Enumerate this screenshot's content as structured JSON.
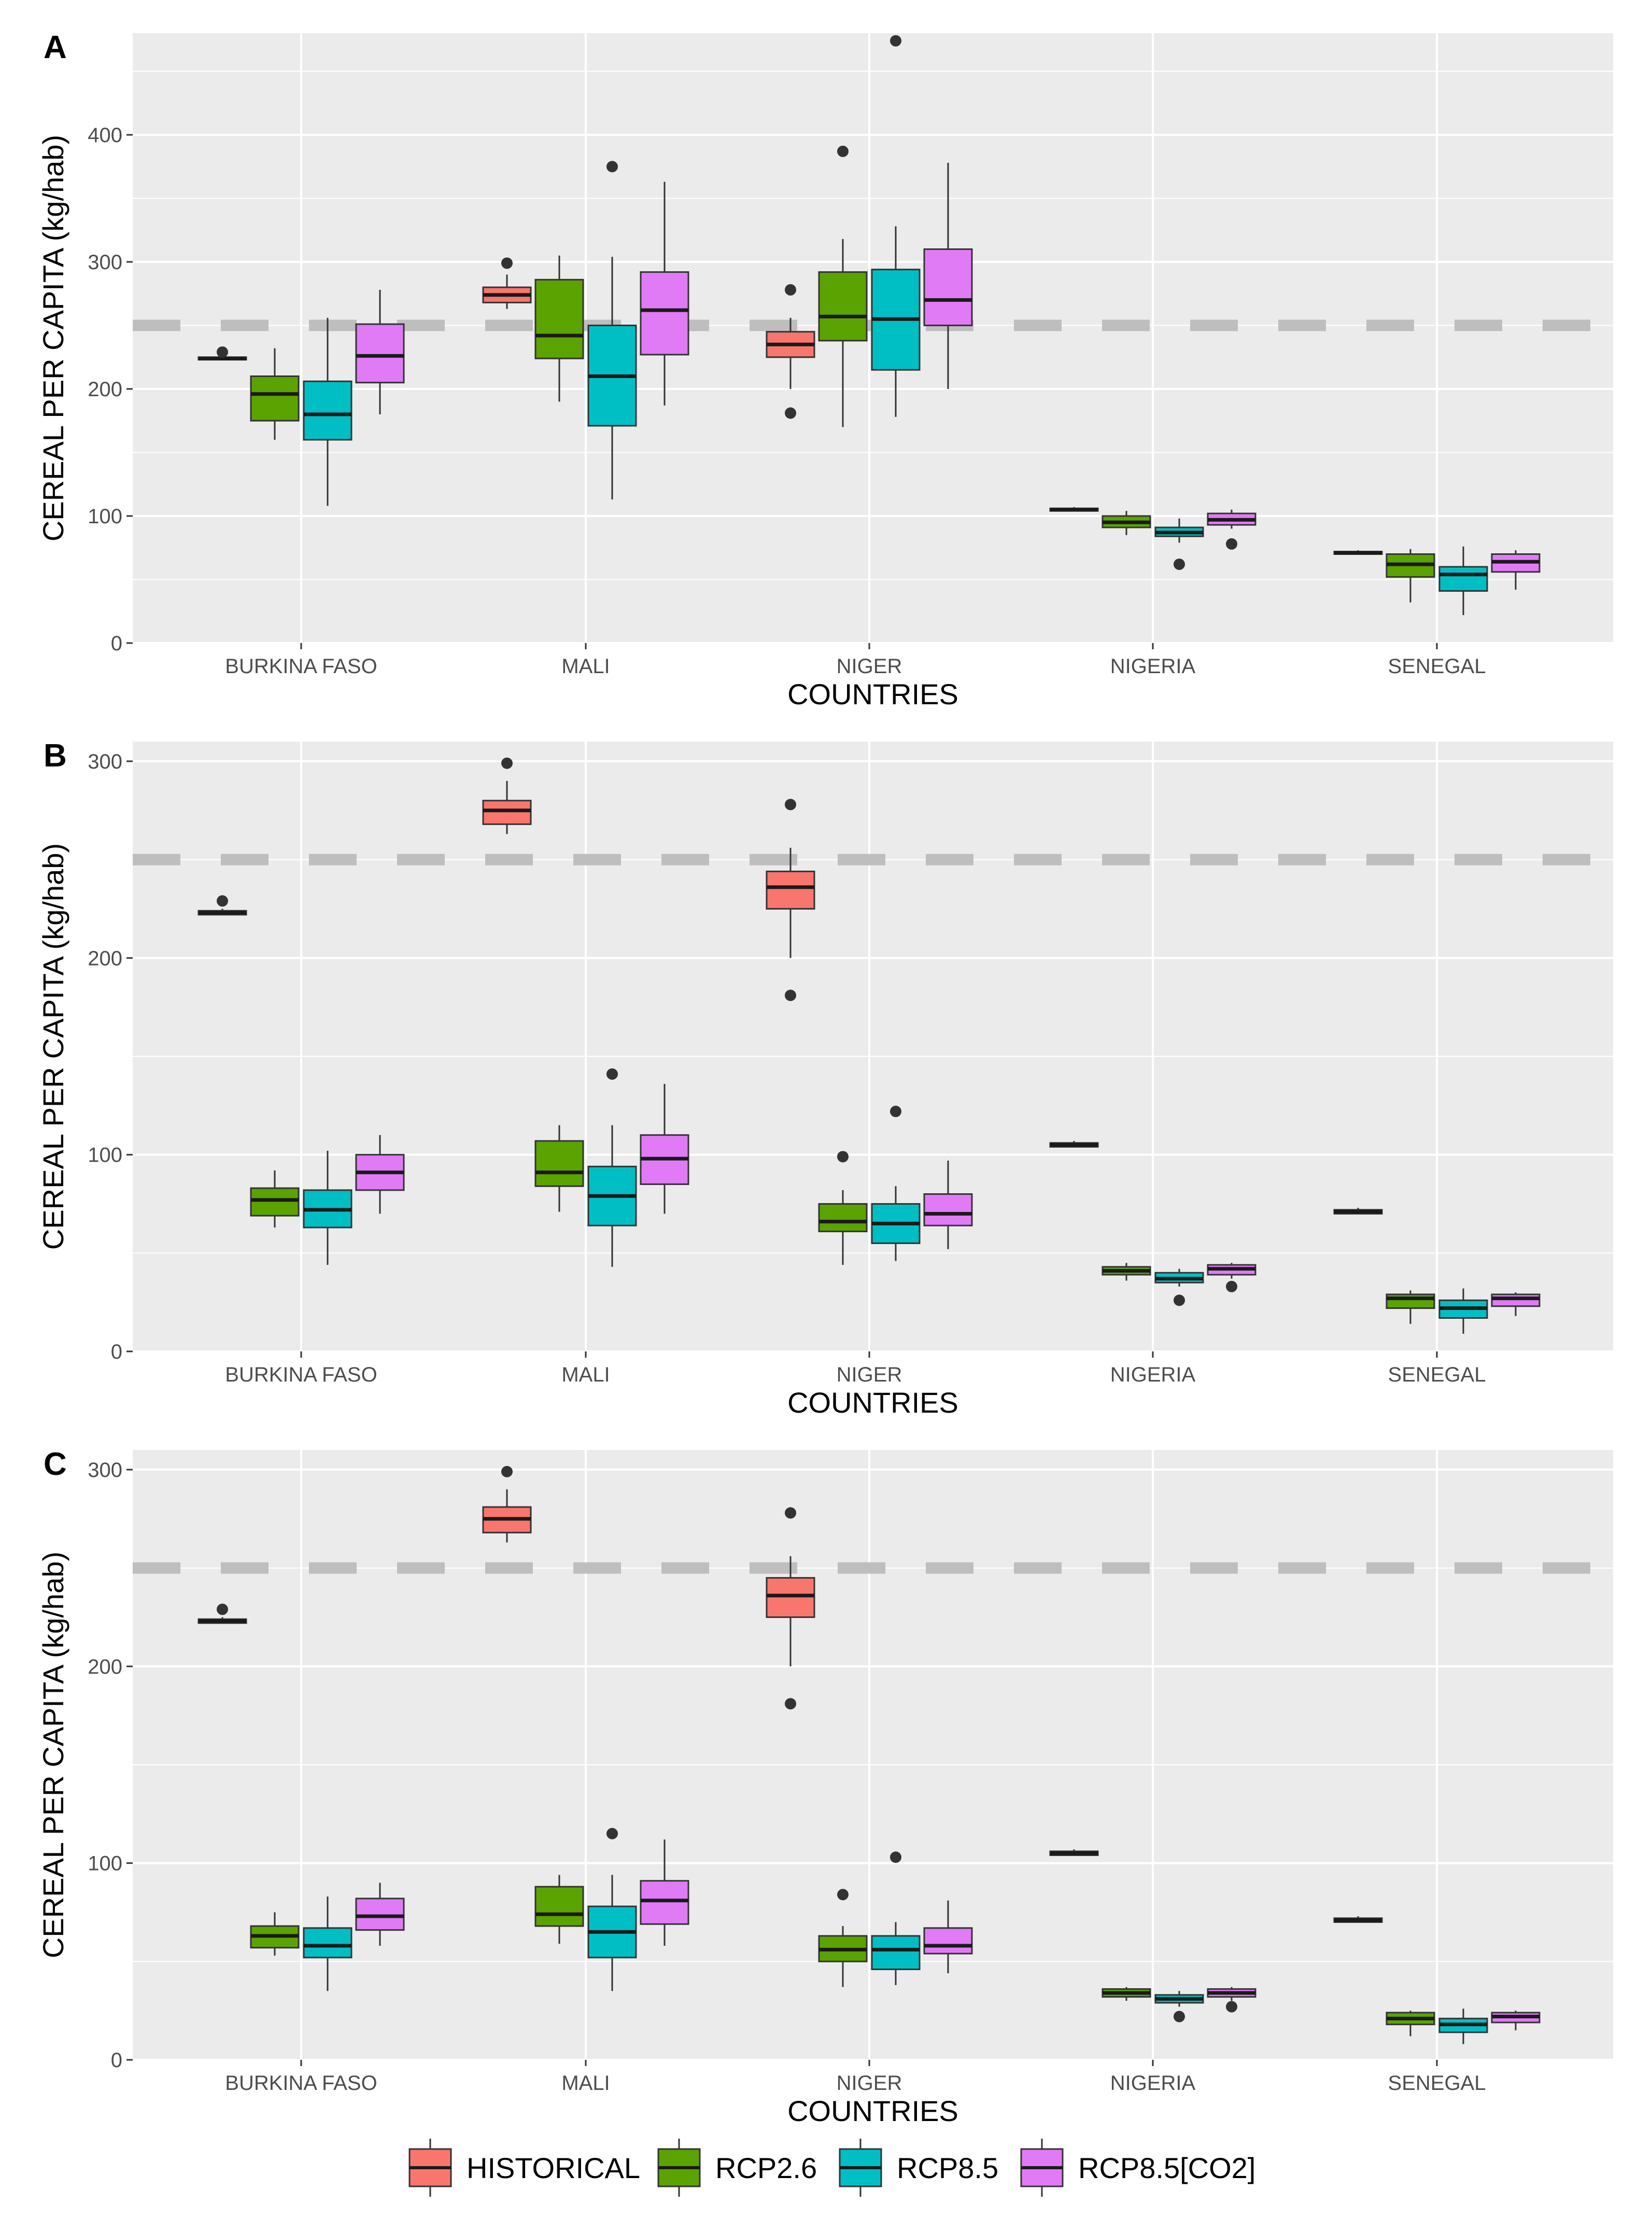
{
  "chart_data": {
    "type": "boxplot",
    "categories": [
      "BURKINA FASO",
      "MALI",
      "NIGER",
      "NIGERIA",
      "SENEGAL"
    ],
    "xlabel": "COUNTRIES",
    "ylabel": "CEREAL PER CAPITA (kg/hab)",
    "series_names": [
      "HISTORICAL",
      "RCP2.6",
      "RCP8.5",
      "RCP8.5[CO2]"
    ],
    "colors": {
      "HISTORICAL": "#F8766D",
      "RCP2.6": "#5BA300",
      "RCP8.5": "#00BFC4",
      "RCP8.5[CO2]": "#E07BF5",
      "panel_bg": "#EBEBEB",
      "grid": "#FFFFFF",
      "reference_line": "#BEBEBE"
    },
    "reference_line": 250,
    "panels": [
      {
        "label": "A",
        "ylim": [
          0,
          480
        ],
        "yticks": [
          0,
          100,
          200,
          300,
          400
        ],
        "boxes": [
          {
            "category": "BURKINA FASO",
            "series": "HISTORICAL",
            "min": 223,
            "q1": 223,
            "median": 224,
            "q3": 225,
            "max": 226,
            "outliers": [
              229
            ]
          },
          {
            "category": "BURKINA FASO",
            "series": "RCP2.6",
            "min": 160,
            "q1": 175,
            "median": 196,
            "q3": 210,
            "max": 232,
            "outliers": []
          },
          {
            "category": "BURKINA FASO",
            "series": "RCP8.5",
            "min": 108,
            "q1": 160,
            "median": 180,
            "q3": 206,
            "max": 256,
            "outliers": []
          },
          {
            "category": "BURKINA FASO",
            "series": "RCP8.5[CO2]",
            "min": 180,
            "q1": 205,
            "median": 226,
            "q3": 251,
            "max": 278,
            "outliers": []
          },
          {
            "category": "MALI",
            "series": "HISTORICAL",
            "min": 263,
            "q1": 268,
            "median": 274,
            "q3": 280,
            "max": 290,
            "outliers": [
              299
            ]
          },
          {
            "category": "MALI",
            "series": "RCP2.6",
            "min": 190,
            "q1": 224,
            "median": 242,
            "q3": 286,
            "max": 305,
            "outliers": []
          },
          {
            "category": "MALI",
            "series": "RCP8.5",
            "min": 113,
            "q1": 171,
            "median": 210,
            "q3": 250,
            "max": 304,
            "outliers": [
              375
            ]
          },
          {
            "category": "MALI",
            "series": "RCP8.5[CO2]",
            "min": 187,
            "q1": 227,
            "median": 262,
            "q3": 292,
            "max": 363,
            "outliers": []
          },
          {
            "category": "NIGER",
            "series": "HISTORICAL",
            "min": 200,
            "q1": 225,
            "median": 235,
            "q3": 245,
            "max": 256,
            "outliers": [
              278,
              181
            ]
          },
          {
            "category": "NIGER",
            "series": "RCP2.6",
            "min": 170,
            "q1": 238,
            "median": 257,
            "q3": 292,
            "max": 318,
            "outliers": [
              387
            ]
          },
          {
            "category": "NIGER",
            "series": "RCP8.5",
            "min": 178,
            "q1": 215,
            "median": 255,
            "q3": 294,
            "max": 328,
            "outliers": [
              474
            ]
          },
          {
            "category": "NIGER",
            "series": "RCP8.5[CO2]",
            "min": 200,
            "q1": 250,
            "median": 270,
            "q3": 310,
            "max": 378,
            "outliers": []
          },
          {
            "category": "NIGERIA",
            "series": "HISTORICAL",
            "min": 104,
            "q1": 104,
            "median": 105,
            "q3": 106,
            "max": 107,
            "outliers": []
          },
          {
            "category": "NIGERIA",
            "series": "RCP2.6",
            "min": 85,
            "q1": 91,
            "median": 95,
            "q3": 100,
            "max": 104,
            "outliers": []
          },
          {
            "category": "NIGERIA",
            "series": "RCP8.5",
            "min": 79,
            "q1": 84,
            "median": 87,
            "q3": 91,
            "max": 98,
            "outliers": [
              62
            ]
          },
          {
            "category": "NIGERIA",
            "series": "RCP8.5[CO2]",
            "min": 90,
            "q1": 93,
            "median": 97,
            "q3": 102,
            "max": 105,
            "outliers": [
              78
            ]
          },
          {
            "category": "SENEGAL",
            "series": "HISTORICAL",
            "min": 70,
            "q1": 70,
            "median": 71,
            "q3": 72,
            "max": 73,
            "outliers": []
          },
          {
            "category": "SENEGAL",
            "series": "RCP2.6",
            "min": 32,
            "q1": 52,
            "median": 62,
            "q3": 70,
            "max": 74,
            "outliers": []
          },
          {
            "category": "SENEGAL",
            "series": "RCP8.5",
            "min": 22,
            "q1": 41,
            "median": 54,
            "q3": 60,
            "max": 76,
            "outliers": []
          },
          {
            "category": "SENEGAL",
            "series": "RCP8.5[CO2]",
            "min": 42,
            "q1": 56,
            "median": 64,
            "q3": 70,
            "max": 73,
            "outliers": []
          }
        ]
      },
      {
        "label": "B",
        "ylim": [
          0,
          310
        ],
        "yticks": [
          0,
          100,
          200,
          300
        ],
        "boxes": [
          {
            "category": "BURKINA FASO",
            "series": "HISTORICAL",
            "min": 222,
            "q1": 222,
            "median": 223,
            "q3": 224,
            "max": 225,
            "outliers": [
              229
            ]
          },
          {
            "category": "BURKINA FASO",
            "series": "RCP2.6",
            "min": 63,
            "q1": 69,
            "median": 77,
            "q3": 83,
            "max": 92,
            "outliers": []
          },
          {
            "category": "BURKINA FASO",
            "series": "RCP8.5",
            "min": 44,
            "q1": 63,
            "median": 72,
            "q3": 82,
            "max": 102,
            "outliers": []
          },
          {
            "category": "BURKINA FASO",
            "series": "RCP8.5[CO2]",
            "min": 70,
            "q1": 82,
            "median": 91,
            "q3": 100,
            "max": 110,
            "outliers": []
          },
          {
            "category": "MALI",
            "series": "HISTORICAL",
            "min": 263,
            "q1": 268,
            "median": 275,
            "q3": 280,
            "max": 290,
            "outliers": [
              299
            ]
          },
          {
            "category": "MALI",
            "series": "RCP2.6",
            "min": 71,
            "q1": 84,
            "median": 91,
            "q3": 107,
            "max": 115,
            "outliers": []
          },
          {
            "category": "MALI",
            "series": "RCP8.5",
            "min": 43,
            "q1": 64,
            "median": 79,
            "q3": 94,
            "max": 115,
            "outliers": [
              141
            ]
          },
          {
            "category": "MALI",
            "series": "RCP8.5[CO2]",
            "min": 70,
            "q1": 85,
            "median": 98,
            "q3": 110,
            "max": 136,
            "outliers": []
          },
          {
            "category": "NIGER",
            "series": "HISTORICAL",
            "min": 200,
            "q1": 225,
            "median": 236,
            "q3": 244,
            "max": 256,
            "outliers": [
              278,
              181
            ]
          },
          {
            "category": "NIGER",
            "series": "RCP2.6",
            "min": 44,
            "q1": 61,
            "median": 66,
            "q3": 75,
            "max": 82,
            "outliers": [
              99
            ]
          },
          {
            "category": "NIGER",
            "series": "RCP8.5",
            "min": 46,
            "q1": 55,
            "median": 65,
            "q3": 75,
            "max": 84,
            "outliers": [
              122
            ]
          },
          {
            "category": "NIGER",
            "series": "RCP8.5[CO2]",
            "min": 52,
            "q1": 64,
            "median": 70,
            "q3": 80,
            "max": 97,
            "outliers": []
          },
          {
            "category": "NIGERIA",
            "series": "HISTORICAL",
            "min": 104,
            "q1": 104,
            "median": 105,
            "q3": 106,
            "max": 107,
            "outliers": []
          },
          {
            "category": "NIGERIA",
            "series": "RCP2.6",
            "min": 36,
            "q1": 39,
            "median": 41,
            "q3": 43,
            "max": 45,
            "outliers": []
          },
          {
            "category": "NIGERIA",
            "series": "RCP8.5",
            "min": 33,
            "q1": 35,
            "median": 37,
            "q3": 40,
            "max": 42,
            "outliers": [
              26
            ]
          },
          {
            "category": "NIGERIA",
            "series": "RCP8.5[CO2]",
            "min": 37,
            "q1": 39,
            "median": 42,
            "q3": 44,
            "max": 45,
            "outliers": [
              33
            ]
          },
          {
            "category": "SENEGAL",
            "series": "HISTORICAL",
            "min": 70,
            "q1": 70,
            "median": 71,
            "q3": 72,
            "max": 73,
            "outliers": []
          },
          {
            "category": "SENEGAL",
            "series": "RCP2.6",
            "min": 14,
            "q1": 22,
            "median": 27,
            "q3": 29,
            "max": 31,
            "outliers": []
          },
          {
            "category": "SENEGAL",
            "series": "RCP8.5",
            "min": 9,
            "q1": 17,
            "median": 22,
            "q3": 26,
            "max": 32,
            "outliers": []
          },
          {
            "category": "SENEGAL",
            "series": "RCP8.5[CO2]",
            "min": 18,
            "q1": 23,
            "median": 27,
            "q3": 29,
            "max": 30,
            "outliers": []
          }
        ]
      },
      {
        "label": "C",
        "ylim": [
          0,
          310
        ],
        "yticks": [
          0,
          100,
          200,
          300
        ],
        "boxes": [
          {
            "category": "BURKINA FASO",
            "series": "HISTORICAL",
            "min": 222,
            "q1": 222,
            "median": 223,
            "q3": 224,
            "max": 225,
            "outliers": [
              229
            ]
          },
          {
            "category": "BURKINA FASO",
            "series": "RCP2.6",
            "min": 53,
            "q1": 57,
            "median": 63,
            "q3": 68,
            "max": 75,
            "outliers": []
          },
          {
            "category": "BURKINA FASO",
            "series": "RCP8.5",
            "min": 35,
            "q1": 52,
            "median": 58,
            "q3": 67,
            "max": 83,
            "outliers": []
          },
          {
            "category": "BURKINA FASO",
            "series": "RCP8.5[CO2]",
            "min": 58,
            "q1": 66,
            "median": 73,
            "q3": 82,
            "max": 90,
            "outliers": []
          },
          {
            "category": "MALI",
            "series": "HISTORICAL",
            "min": 263,
            "q1": 268,
            "median": 275,
            "q3": 281,
            "max": 290,
            "outliers": [
              299
            ]
          },
          {
            "category": "MALI",
            "series": "RCP2.6",
            "min": 59,
            "q1": 68,
            "median": 74,
            "q3": 88,
            "max": 94,
            "outliers": []
          },
          {
            "category": "MALI",
            "series": "RCP8.5",
            "min": 35,
            "q1": 52,
            "median": 65,
            "q3": 78,
            "max": 94,
            "outliers": [
              115
            ]
          },
          {
            "category": "MALI",
            "series": "RCP8.5[CO2]",
            "min": 58,
            "q1": 69,
            "median": 81,
            "q3": 91,
            "max": 112,
            "outliers": []
          },
          {
            "category": "NIGER",
            "series": "HISTORICAL",
            "min": 200,
            "q1": 225,
            "median": 236,
            "q3": 245,
            "max": 256,
            "outliers": [
              278,
              181
            ]
          },
          {
            "category": "NIGER",
            "series": "RCP2.6",
            "min": 37,
            "q1": 50,
            "median": 56,
            "q3": 63,
            "max": 68,
            "outliers": [
              84
            ]
          },
          {
            "category": "NIGER",
            "series": "RCP8.5",
            "min": 38,
            "q1": 46,
            "median": 56,
            "q3": 63,
            "max": 70,
            "outliers": [
              103
            ]
          },
          {
            "category": "NIGER",
            "series": "RCP8.5[CO2]",
            "min": 44,
            "q1": 54,
            "median": 58,
            "q3": 67,
            "max": 81,
            "outliers": []
          },
          {
            "category": "NIGERIA",
            "series": "HISTORICAL",
            "min": 104,
            "q1": 104,
            "median": 105,
            "q3": 106,
            "max": 107,
            "outliers": []
          },
          {
            "category": "NIGERIA",
            "series": "RCP2.6",
            "min": 30,
            "q1": 32,
            "median": 34,
            "q3": 36,
            "max": 37,
            "outliers": []
          },
          {
            "category": "NIGERIA",
            "series": "RCP8.5",
            "min": 27,
            "q1": 29,
            "median": 31,
            "q3": 33,
            "max": 35,
            "outliers": [
              22
            ]
          },
          {
            "category": "NIGERIA",
            "series": "RCP8.5[CO2]",
            "min": 30,
            "q1": 32,
            "median": 34,
            "q3": 36,
            "max": 37,
            "outliers": [
              27
            ]
          },
          {
            "category": "SENEGAL",
            "series": "HISTORICAL",
            "min": 70,
            "q1": 70,
            "median": 71,
            "q3": 72,
            "max": 73,
            "outliers": []
          },
          {
            "category": "SENEGAL",
            "series": "RCP2.6",
            "min": 12,
            "q1": 18,
            "median": 21,
            "q3": 24,
            "max": 25,
            "outliers": []
          },
          {
            "category": "SENEGAL",
            "series": "RCP8.5",
            "min": 8,
            "q1": 14,
            "median": 18,
            "q3": 21,
            "max": 26,
            "outliers": []
          },
          {
            "category": "SENEGAL",
            "series": "RCP8.5[CO2]",
            "min": 15,
            "q1": 19,
            "median": 22,
            "q3": 24,
            "max": 25,
            "outliers": []
          }
        ]
      }
    ]
  }
}
